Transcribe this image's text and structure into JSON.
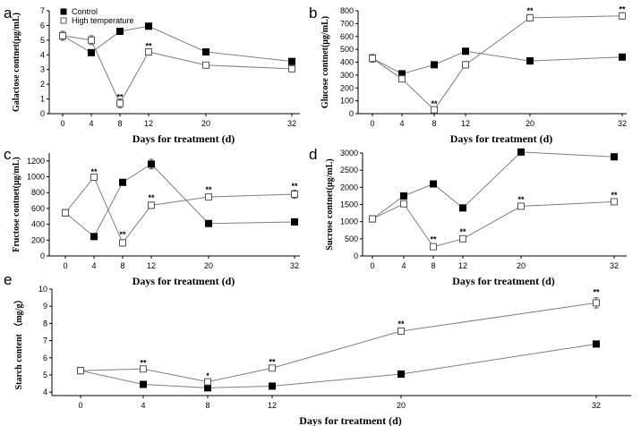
{
  "legend": {
    "control": "Control",
    "high": "High temperature"
  },
  "colors": {
    "control": "#000000",
    "high": "#ffffff",
    "line": "#7f7f7f"
  },
  "chart_data": [
    {
      "id": "a",
      "letter": "a",
      "type": "line",
      "xlabel": "Days for treatment (d)",
      "ylabel": "Galactose contnet(μg/mL)",
      "x": [
        0,
        4,
        8,
        12,
        20,
        32
      ],
      "xticks": [
        "0",
        "4",
        "8",
        "12",
        "20",
        "32"
      ],
      "ylim": [
        0,
        7
      ],
      "yticks": [
        "0",
        "1",
        "2",
        "3",
        "4",
        "5",
        "6",
        "7"
      ],
      "series": [
        {
          "name": "Control",
          "values": [
            5.3,
            4.15,
            5.6,
            5.95,
            4.2,
            3.55
          ],
          "err": [
            0.3,
            0.15,
            0.05,
            0.05,
            0.05,
            0.05
          ]
        },
        {
          "name": "High temperature",
          "values": [
            5.3,
            5.0,
            0.7,
            4.2,
            3.3,
            3.05
          ],
          "err": [
            0.3,
            0.3,
            0.3,
            0.15,
            0.2,
            0.1
          ]
        }
      ],
      "annotations": [
        {
          "x": 8,
          "y": 0.95,
          "text": "**"
        },
        {
          "x": 12,
          "y": 4.4,
          "text": "**"
        },
        {
          "x": 32,
          "y": 3.1,
          "text": "*"
        }
      ]
    },
    {
      "id": "b",
      "letter": "b",
      "type": "line",
      "xlabel": "Days for treatment (d)",
      "ylabel": "Glucose contnet(μg/mL)",
      "x": [
        0,
        4,
        8,
        12,
        20,
        32
      ],
      "xticks": [
        "0",
        "4",
        "8",
        "12",
        "20",
        "32"
      ],
      "ylim": [
        0,
        800
      ],
      "yticks": [
        "0",
        "100",
        "200",
        "300",
        "400",
        "500",
        "600",
        "700",
        "800"
      ],
      "series": [
        {
          "name": "Control",
          "values": [
            430,
            310,
            380,
            485,
            410,
            440
          ],
          "err": [
            30,
            15,
            15,
            15,
            25,
            20
          ]
        },
        {
          "name": "High temperature",
          "values": [
            430,
            270,
            30,
            380,
            745,
            760
          ],
          "err": [
            30,
            20,
            20,
            25,
            25,
            25
          ]
        }
      ],
      "annotations": [
        {
          "x": 8,
          "y": 55,
          "text": "**"
        },
        {
          "x": 20,
          "y": 780,
          "text": "**"
        },
        {
          "x": 32,
          "y": 790,
          "text": "**"
        }
      ]
    },
    {
      "id": "c",
      "letter": "c",
      "type": "line",
      "xlabel": "Days for treatment (d)",
      "ylabel": "Fructose contnet(μg/mL)",
      "x": [
        0,
        4,
        8,
        12,
        20,
        32
      ],
      "xticks": [
        "0",
        "4",
        "8",
        "12",
        "20",
        "32"
      ],
      "ylim": [
        0,
        1300
      ],
      "yticks": [
        "0",
        "200",
        "400",
        "600",
        "800",
        "1000",
        "1200"
      ],
      "series": [
        {
          "name": "Control",
          "values": [
            545,
            245,
            930,
            1160,
            410,
            430
          ],
          "err": [
            20,
            20,
            30,
            60,
            20,
            40
          ]
        },
        {
          "name": "High temperature",
          "values": [
            545,
            995,
            165,
            640,
            745,
            780
          ],
          "err": [
            20,
            20,
            40,
            40,
            30,
            50
          ]
        }
      ],
      "annotations": [
        {
          "x": 4,
          "y": 1030,
          "text": "**"
        },
        {
          "x": 8,
          "y": 240,
          "text": "**"
        },
        {
          "x": 12,
          "y": 700,
          "text": "**"
        },
        {
          "x": 20,
          "y": 800,
          "text": "**"
        },
        {
          "x": 32,
          "y": 850,
          "text": "**"
        }
      ]
    },
    {
      "id": "d",
      "letter": "d",
      "type": "line",
      "xlabel": "Days for treatment (d)",
      "ylabel": "Sucrose contnet(μg/mL)",
      "x": [
        0,
        4,
        8,
        12,
        20,
        32
      ],
      "xticks": [
        "0",
        "4",
        "8",
        "12",
        "20",
        "32"
      ],
      "ylim": [
        0,
        3000
      ],
      "yticks": [
        "0",
        "500",
        "1000",
        "1500",
        "2000",
        "2500",
        "3000"
      ],
      "series": [
        {
          "name": "Control",
          "values": [
            1080,
            1750,
            2100,
            1400,
            3030,
            2890
          ],
          "err": [
            60,
            30,
            30,
            30,
            60,
            60
          ]
        },
        {
          "name": "High temperature",
          "values": [
            1080,
            1520,
            270,
            500,
            1450,
            1580
          ],
          "err": [
            60,
            60,
            60,
            30,
            60,
            60
          ]
        }
      ],
      "annotations": [
        {
          "x": 8,
          "y": 400,
          "text": "**"
        },
        {
          "x": 12,
          "y": 620,
          "text": "**"
        },
        {
          "x": 20,
          "y": 1560,
          "text": "**"
        },
        {
          "x": 32,
          "y": 1700,
          "text": "**"
        }
      ]
    },
    {
      "id": "e",
      "letter": "e",
      "type": "line",
      "xlabel": "Days for treatment (d)",
      "ylabel": "Starch content （mg/g）",
      "x": [
        0,
        4,
        8,
        12,
        20,
        32
      ],
      "xticks": [
        "0",
        "4",
        "8",
        "12",
        "20",
        "32"
      ],
      "ylim": [
        3.8,
        10
      ],
      "yticks": [
        "4",
        "5",
        "6",
        "7",
        "8",
        "9",
        "10"
      ],
      "series": [
        {
          "name": "Control",
          "values": [
            5.25,
            4.45,
            4.25,
            4.35,
            5.05,
            6.8
          ],
          "err": [
            0.1,
            0.08,
            0.08,
            0.08,
            0.15,
            0.15
          ]
        },
        {
          "name": "High temperature",
          "values": [
            5.25,
            5.35,
            4.6,
            5.4,
            7.55,
            9.2
          ],
          "err": [
            0.1,
            0.1,
            0.1,
            0.1,
            0.12,
            0.3
          ]
        }
      ],
      "annotations": [
        {
          "x": 4,
          "y": 5.55,
          "text": "**"
        },
        {
          "x": 8,
          "y": 4.8,
          "text": "*"
        },
        {
          "x": 12,
          "y": 5.6,
          "text": "**"
        },
        {
          "x": 20,
          "y": 7.8,
          "text": "**"
        },
        {
          "x": 32,
          "y": 9.65,
          "text": "**"
        }
      ]
    }
  ]
}
